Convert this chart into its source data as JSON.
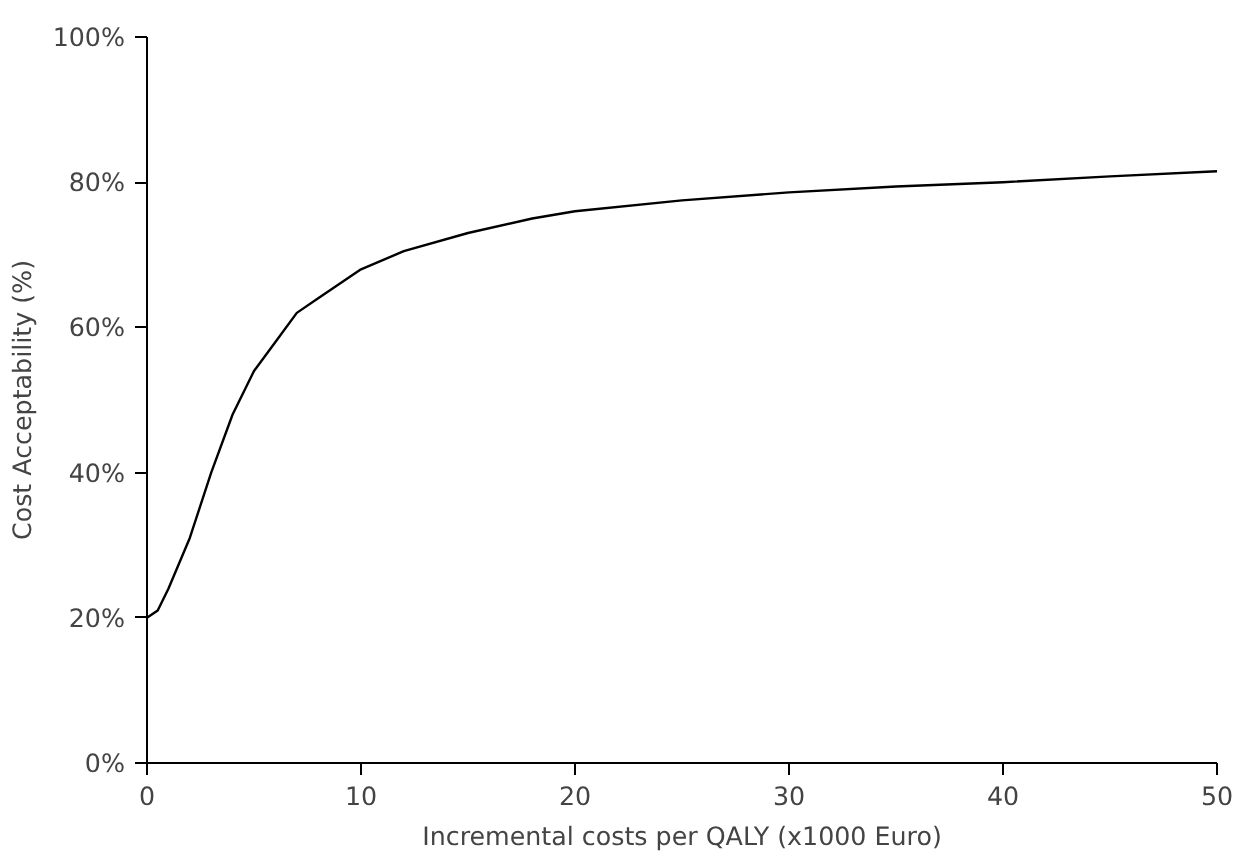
{
  "chart_data": {
    "type": "line",
    "xlabel": "Incremental costs per QALY (x1000 Euro)",
    "ylabel": "Cost Acceptability (%)",
    "x": [
      0,
      0.5,
      1,
      2,
      3,
      4,
      5,
      6,
      7,
      8,
      10,
      12,
      15,
      18,
      20,
      25,
      30,
      35,
      40,
      45,
      50
    ],
    "series": [
      {
        "color": "#000000",
        "values": [
          20,
          21,
          24,
          31,
          40,
          48,
          54,
          58,
          62,
          64,
          68,
          70.5,
          73,
          75,
          76,
          77.5,
          78.6,
          79.4,
          80,
          80.8,
          81.5
        ]
      }
    ],
    "xlim": [
      0,
      50
    ],
    "ylim": [
      0,
      100
    ],
    "xticks": [
      0,
      10,
      20,
      30,
      40,
      50
    ],
    "yticks": [
      {
        "value": 0,
        "label": "0%"
      },
      {
        "value": 20,
        "label": "20%"
      },
      {
        "value": 40,
        "label": "40%"
      },
      {
        "value": 60,
        "label": "60%"
      },
      {
        "value": 80,
        "label": "80%"
      },
      {
        "value": 100,
        "label": "100%"
      }
    ],
    "marker": "none",
    "line_style": "solid"
  }
}
